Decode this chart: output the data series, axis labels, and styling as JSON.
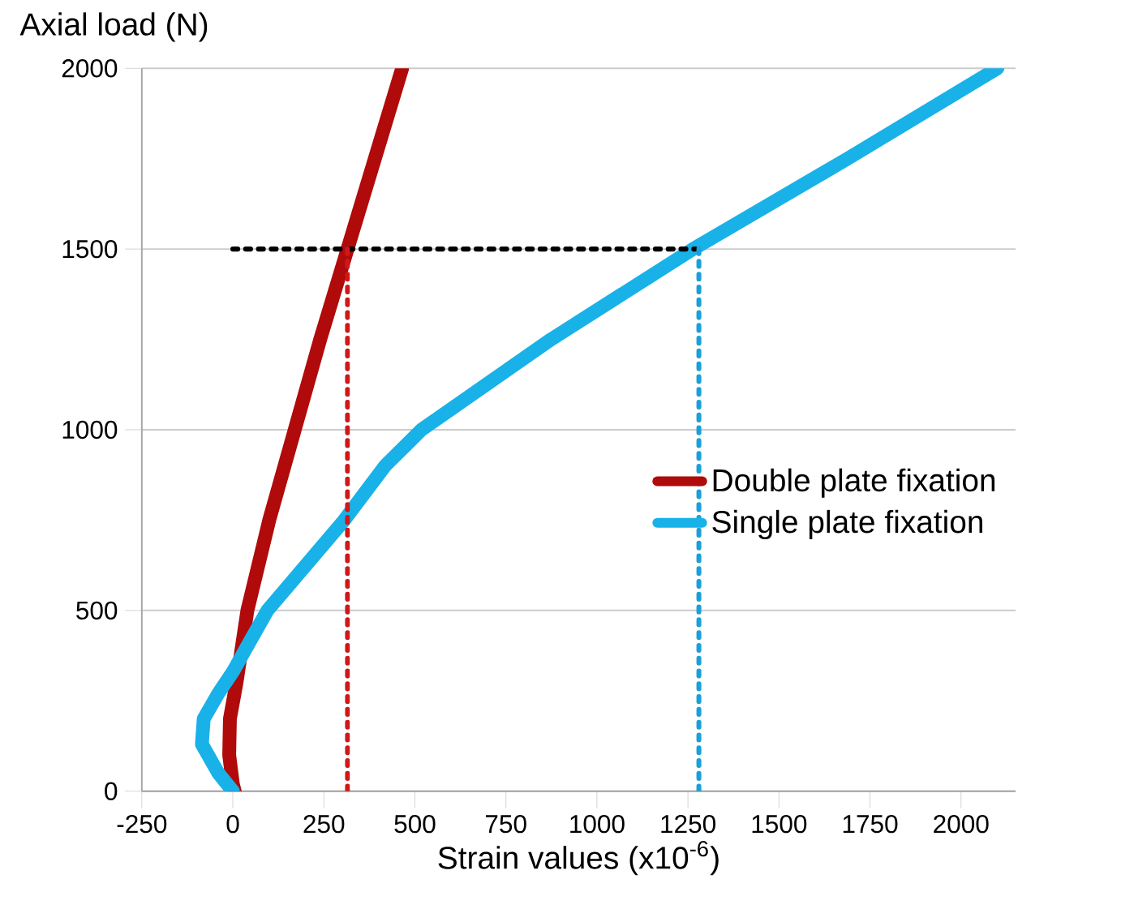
{
  "chart_data": {
    "type": "line",
    "xlabel": "Strain values (x10$^{-6}$)",
    "ylabel": "Axial load (N)",
    "xlim": [
      -250,
      2150
    ],
    "ylim": [
      0,
      2000
    ],
    "xticks": [
      {
        "value": -250,
        "label": "-250"
      },
      0,
      250,
      500,
      750,
      1000,
      1250,
      1500,
      1750,
      2000
    ],
    "yticks": [
      0,
      500,
      1000,
      1500,
      2000
    ],
    "grid": "y",
    "legend": "right",
    "marker": "none",
    "series": [
      {
        "name": "Double plate fixation",
        "color": "#b00a0a",
        "line_style": "solid",
        "x": [
          5,
          0,
          -10,
          -8,
          10,
          40,
          100,
          170,
          240,
          315,
          390,
          465
        ],
        "values": [
          0,
          20,
          100,
          200,
          300,
          500,
          750,
          1000,
          1250,
          1500,
          1750,
          2000
        ]
      },
      {
        "name": "Single plate fixation",
        "color": "#18b2e8",
        "line_style": "solid",
        "x": [
          0,
          -40,
          -85,
          -80,
          -40,
          0,
          50,
          95,
          306,
          418,
          518,
          874,
          1264,
          1688,
          2100
        ],
        "values": [
          0,
          50,
          130,
          200,
          270,
          330,
          420,
          500,
          750,
          900,
          1000,
          1250,
          1500,
          1750,
          2000
        ]
      },
      {
        "color": "#000000",
        "line_style": "dotted",
        "x": [
          0,
          1270
        ],
        "values": [
          1500,
          1500
        ]
      },
      {
        "color": "#d01818",
        "line_style": "dotted",
        "x": [
          315,
          315
        ],
        "values": [
          0,
          1500
        ]
      },
      {
        "color": "#1aa0d8",
        "line_style": "dotted",
        "x": [
          1280,
          1280
        ],
        "values": [
          0,
          1500
        ]
      }
    ]
  }
}
